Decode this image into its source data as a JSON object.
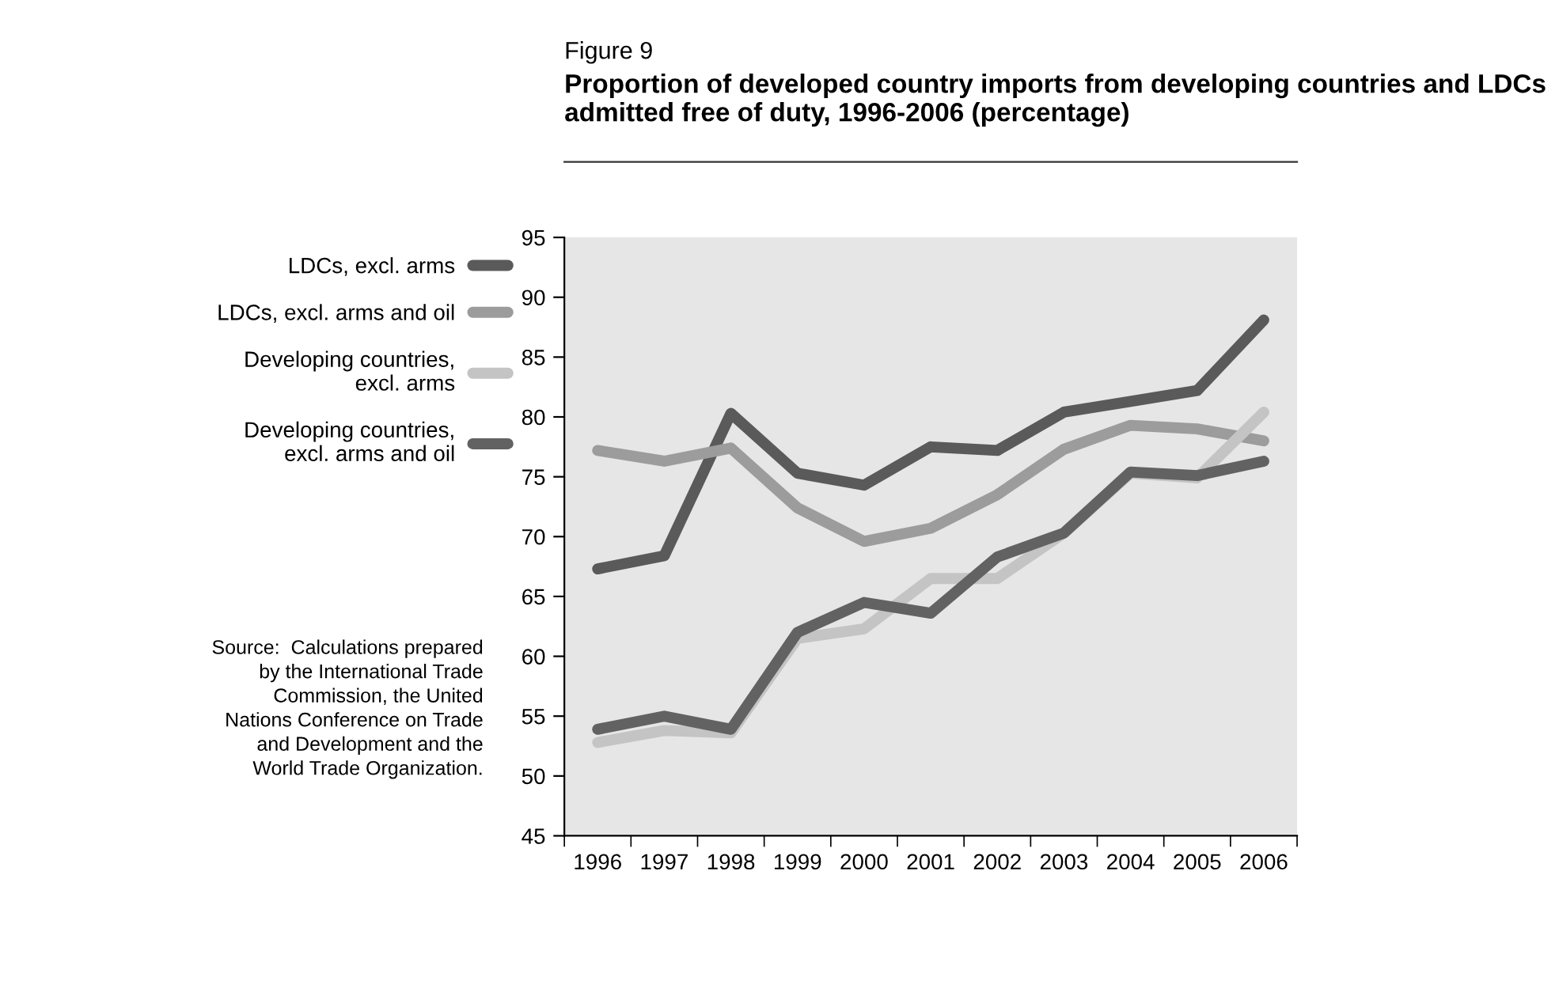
{
  "chart_data": {
    "type": "line",
    "title": "Figure 9",
    "subtitle": "Proportion of developed country imports from developing countries and LDCs admitted free of duty, 1996-2006 (percentage)",
    "categories": [
      "1996",
      "1997",
      "1998",
      "1999",
      "2000",
      "2001",
      "2002",
      "2003",
      "2004",
      "2005",
      "2006"
    ],
    "series": [
      {
        "name": "LDCs, excl. arms",
        "color": "#5a5a5a",
        "values": [
          67.3,
          68.4,
          80.3,
          75.3,
          74.3,
          77.5,
          77.2,
          80.4,
          81.3,
          82.2,
          88.1
        ]
      },
      {
        "name": "LDCs, excl. arms and oil",
        "color": "#9c9c9c",
        "values": [
          77.2,
          76.3,
          77.4,
          72.4,
          69.6,
          70.7,
          73.5,
          77.3,
          79.3,
          79.0,
          78.0
        ]
      },
      {
        "name": "Developing countries,\nexcl. arms",
        "color": "#c4c4c4",
        "values": [
          52.8,
          53.8,
          53.6,
          61.5,
          62.3,
          66.5,
          66.5,
          70.3,
          75.3,
          74.9,
          80.4
        ]
      },
      {
        "name": "Developing countries,\nexcl. arms and oil",
        "color": "#626262",
        "values": [
          53.9,
          55.0,
          53.9,
          62.0,
          64.5,
          63.6,
          68.3,
          70.3,
          75.4,
          75.1,
          76.3
        ]
      }
    ],
    "ylim": [
      45,
      95
    ],
    "yticks": [
      45,
      50,
      55,
      60,
      65,
      70,
      75,
      80,
      85,
      90,
      95
    ],
    "grid": false,
    "legend": "left",
    "marker": "none",
    "line_style": "solid",
    "annotations": [
      "Source:  Calculations prepared\nby the International Trade\nCommission, the United\nNations Conference on Trade\nand Development and the\nWorld Trade Organization."
    ]
  }
}
